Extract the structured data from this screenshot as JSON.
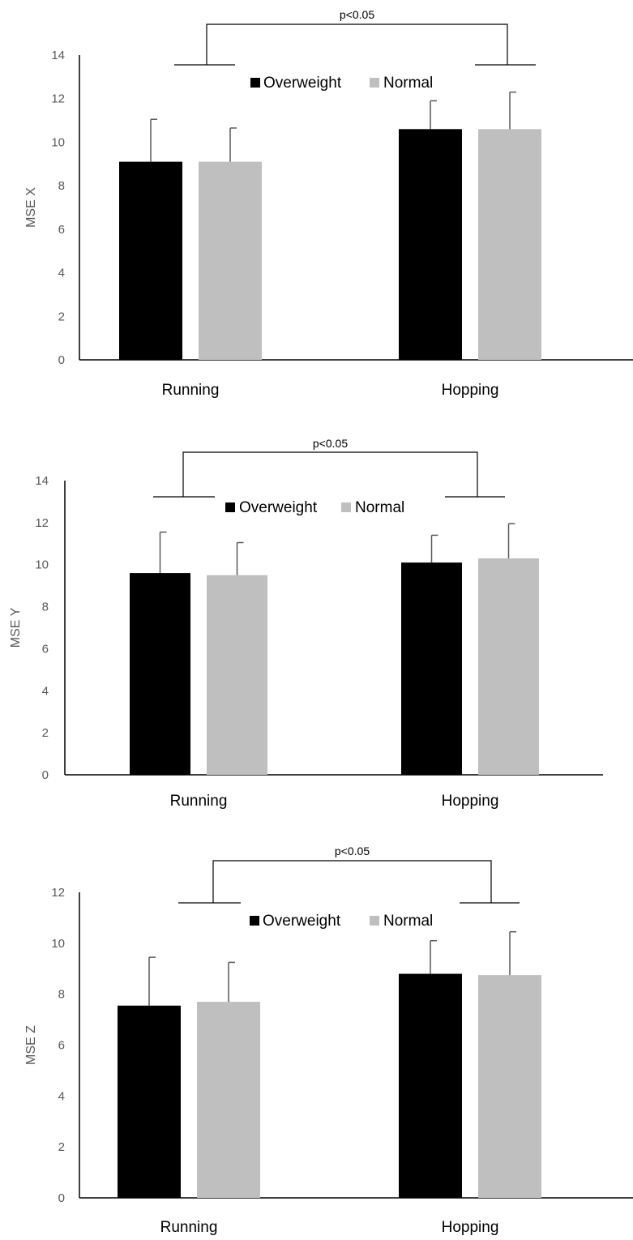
{
  "colors": {
    "overweight": "#000000",
    "normal": "#bfbfbf",
    "error_bar": "#595959",
    "axis": "#000000",
    "tick_text": "#595959"
  },
  "chart_data": [
    {
      "type": "bar",
      "ylabel": "MSE X",
      "ylim": [
        0,
        14
      ],
      "yticks": [
        "0",
        "2",
        "4",
        "6",
        "8",
        "10",
        "12",
        "14"
      ],
      "categories": [
        "Running",
        "Hopping"
      ],
      "legend": {
        "placement": "top-center",
        "entries": [
          "Overweight",
          "Normal"
        ]
      },
      "series": [
        {
          "name": "Overweight",
          "values": [
            9.1,
            10.6
          ],
          "error": [
            1.95,
            1.3
          ]
        },
        {
          "name": "Normal",
          "values": [
            9.1,
            10.6
          ],
          "error": [
            1.55,
            1.7
          ]
        }
      ],
      "significance": {
        "label": "p<0.05",
        "between": [
          "Running",
          "Hopping"
        ]
      }
    },
    {
      "type": "bar",
      "ylabel": "MSE Y",
      "ylim": [
        0,
        14
      ],
      "yticks": [
        "0",
        "2",
        "4",
        "6",
        "8",
        "10",
        "12",
        "14"
      ],
      "categories": [
        "Running",
        "Hopping"
      ],
      "legend": {
        "placement": "top-center",
        "entries": [
          "Overweight",
          "Normal"
        ]
      },
      "series": [
        {
          "name": "Overweight",
          "values": [
            9.6,
            10.1
          ],
          "error": [
            1.95,
            1.3
          ]
        },
        {
          "name": "Normal",
          "values": [
            9.5,
            10.3
          ],
          "error": [
            1.55,
            1.65
          ]
        }
      ],
      "significance": {
        "label": "p<0.05",
        "between": [
          "Running",
          "Hopping"
        ]
      }
    },
    {
      "type": "bar",
      "ylabel": "MSE Z",
      "ylim": [
        0,
        12
      ],
      "yticks": [
        "0",
        "2",
        "4",
        "6",
        "8",
        "10",
        "12"
      ],
      "categories": [
        "Running",
        "Hopping"
      ],
      "legend": {
        "placement": "top-center",
        "entries": [
          "Overweight",
          "Normal"
        ]
      },
      "series": [
        {
          "name": "Overweight",
          "values": [
            7.55,
            8.8
          ],
          "error": [
            1.9,
            1.3
          ]
        },
        {
          "name": "Normal",
          "values": [
            7.7,
            8.75
          ],
          "error": [
            1.55,
            1.7
          ]
        }
      ],
      "significance": {
        "label": "p<0.05",
        "between": [
          "Running",
          "Hopping"
        ]
      }
    }
  ]
}
